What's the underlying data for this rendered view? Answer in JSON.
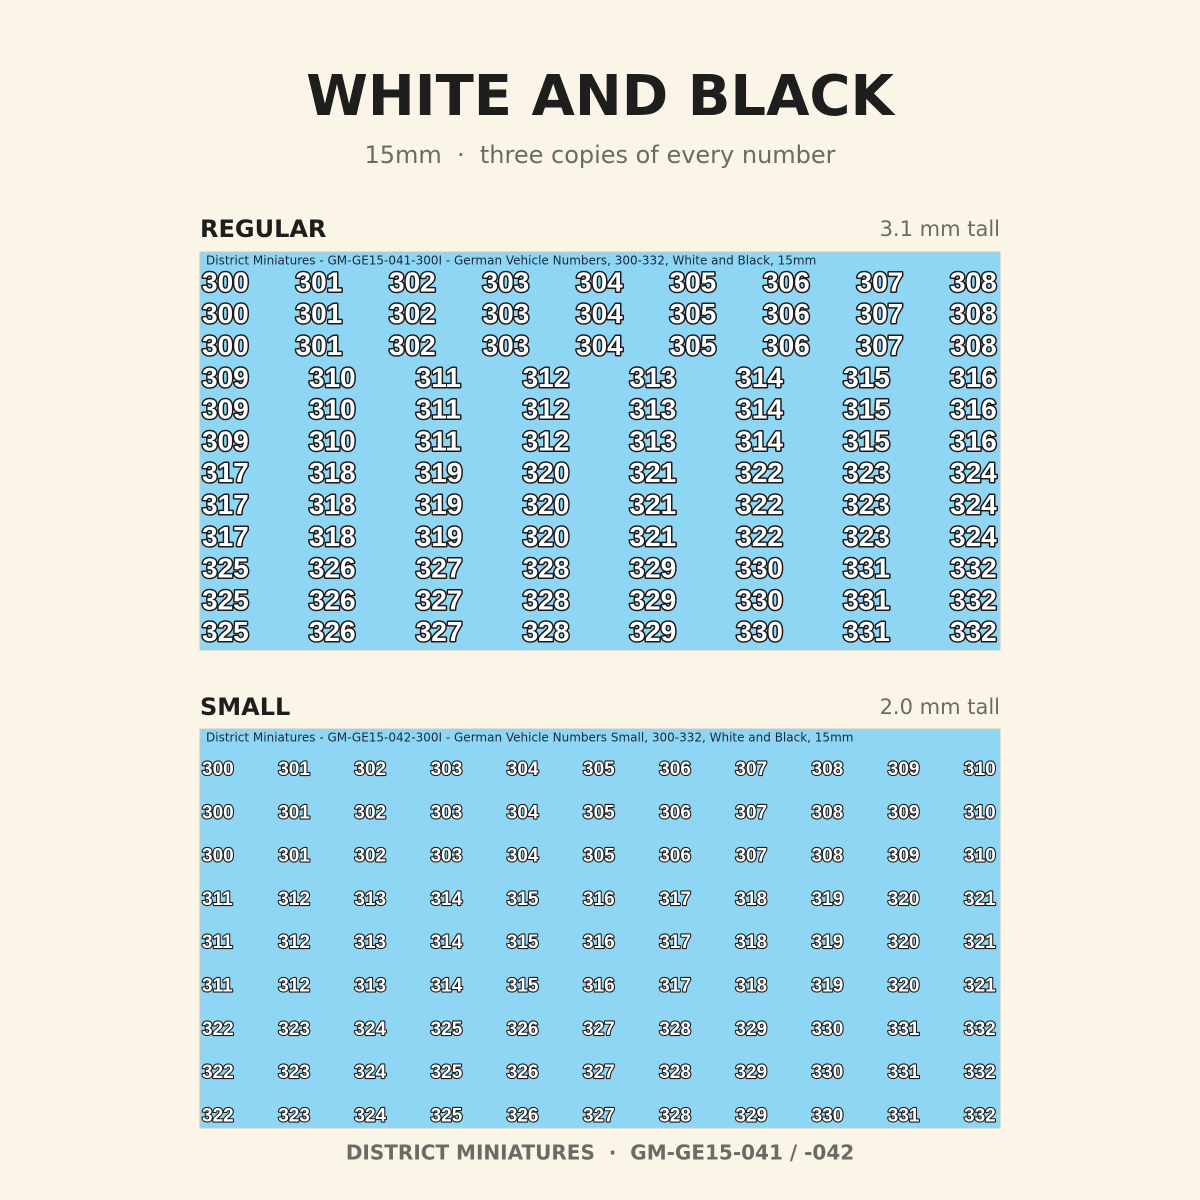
{
  "header": {
    "title": "WHITE AND BLACK",
    "subtitle": "15mm  ·  three copies of every number"
  },
  "sections": [
    {
      "name": "REGULAR",
      "size_note": "3.1 mm tall",
      "sheet_label": "District Miniatures - GM-GE15-041-300I - German Vehicle Numbers, 300-332, White and Black, 15mm",
      "rows": [
        [
          "300",
          "301",
          "302",
          "303",
          "304",
          "305",
          "306",
          "307",
          "308"
        ],
        [
          "300",
          "301",
          "302",
          "303",
          "304",
          "305",
          "306",
          "307",
          "308"
        ],
        [
          "300",
          "301",
          "302",
          "303",
          "304",
          "305",
          "306",
          "307",
          "308"
        ],
        [
          "309",
          "310",
          "311",
          "312",
          "313",
          "314",
          "315",
          "316"
        ],
        [
          "309",
          "310",
          "311",
          "312",
          "313",
          "314",
          "315",
          "316"
        ],
        [
          "309",
          "310",
          "311",
          "312",
          "313",
          "314",
          "315",
          "316"
        ],
        [
          "317",
          "318",
          "319",
          "320",
          "321",
          "322",
          "323",
          "324"
        ],
        [
          "317",
          "318",
          "319",
          "320",
          "321",
          "322",
          "323",
          "324"
        ],
        [
          "317",
          "318",
          "319",
          "320",
          "321",
          "322",
          "323",
          "324"
        ],
        [
          "325",
          "326",
          "327",
          "328",
          "329",
          "330",
          "331",
          "332"
        ],
        [
          "325",
          "326",
          "327",
          "328",
          "329",
          "330",
          "331",
          "332"
        ],
        [
          "325",
          "326",
          "327",
          "328",
          "329",
          "330",
          "331",
          "332"
        ]
      ]
    },
    {
      "name": "SMALL",
      "size_note": "2.0 mm tall",
      "sheet_label": "District Miniatures - GM-GE15-042-300I - German Vehicle Numbers Small, 300-332, White and Black, 15mm",
      "rows": [
        [
          "300",
          "301",
          "302",
          "303",
          "304",
          "305",
          "306",
          "307",
          "308",
          "309",
          "310"
        ],
        [
          "300",
          "301",
          "302",
          "303",
          "304",
          "305",
          "306",
          "307",
          "308",
          "309",
          "310"
        ],
        [
          "300",
          "301",
          "302",
          "303",
          "304",
          "305",
          "306",
          "307",
          "308",
          "309",
          "310"
        ],
        [
          "311",
          "312",
          "313",
          "314",
          "315",
          "316",
          "317",
          "318",
          "319",
          "320",
          "321"
        ],
        [
          "311",
          "312",
          "313",
          "314",
          "315",
          "316",
          "317",
          "318",
          "319",
          "320",
          "321"
        ],
        [
          "311",
          "312",
          "313",
          "314",
          "315",
          "316",
          "317",
          "318",
          "319",
          "320",
          "321"
        ],
        [
          "322",
          "323",
          "324",
          "325",
          "326",
          "327",
          "328",
          "329",
          "330",
          "331",
          "332"
        ],
        [
          "322",
          "323",
          "324",
          "325",
          "326",
          "327",
          "328",
          "329",
          "330",
          "331",
          "332"
        ],
        [
          "322",
          "323",
          "324",
          "325",
          "326",
          "327",
          "328",
          "329",
          "330",
          "331",
          "332"
        ]
      ]
    }
  ],
  "footer": "DISTRICT MINIATURES  ·  GM-GE15-041 / -042"
}
